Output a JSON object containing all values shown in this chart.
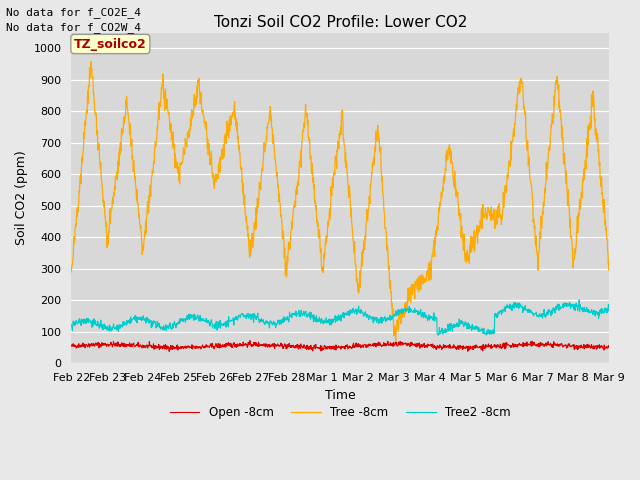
{
  "title": "Tonzi Soil CO2 Profile: Lower CO2",
  "ylabel": "Soil CO2 (ppm)",
  "xlabel": "Time",
  "top_text": [
    "No data for f_CO2E_4",
    "No data for f_CO2W_4"
  ],
  "legend_label": "TZ_soilco2",
  "ylim": [
    0,
    1050
  ],
  "fig_bg_color": "#e8e8e8",
  "plot_bg_color": "#d8d8d8",
  "line_colors": {
    "open": "#dd0000",
    "tree": "#ffaa00",
    "tree2": "#00cccc"
  },
  "legend_entries": [
    "Open -8cm",
    "Tree -8cm",
    "Tree2 -8cm"
  ],
  "xtick_labels": [
    "Feb 22",
    "Feb 23",
    "Feb 24",
    "Feb 25",
    "Feb 26",
    "Feb 27",
    "Feb 28",
    "Mar 1",
    "Mar 2",
    "Mar 3",
    "Mar 4",
    "Mar 5",
    "Mar 6",
    "Mar 7",
    "Mar 8",
    "Mar 9"
  ],
  "grid_color": "#ffffff",
  "title_fontsize": 11,
  "axis_fontsize": 9,
  "tick_fontsize": 8
}
